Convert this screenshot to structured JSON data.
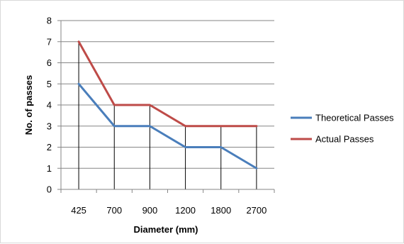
{
  "chart_data": {
    "type": "line",
    "categories": [
      "425",
      "700",
      "900",
      "1200",
      "1800",
      "2700"
    ],
    "series": [
      {
        "name": "Theoretical Passes",
        "values": [
          5,
          3,
          3,
          2,
          2,
          1
        ],
        "color": "#4a7ebb"
      },
      {
        "name": "Actual Passes",
        "values": [
          7,
          4,
          4,
          3,
          3,
          3
        ],
        "color": "#be4b48"
      }
    ],
    "xlabel": "Diameter (mm)",
    "ylabel": "No. of passes",
    "ylim": [
      0,
      8
    ],
    "yticks": [
      "0",
      "1",
      "2",
      "3",
      "4",
      "5",
      "6",
      "7",
      "8"
    ],
    "grid": true,
    "drop_lines": true,
    "legend_position": "right"
  }
}
